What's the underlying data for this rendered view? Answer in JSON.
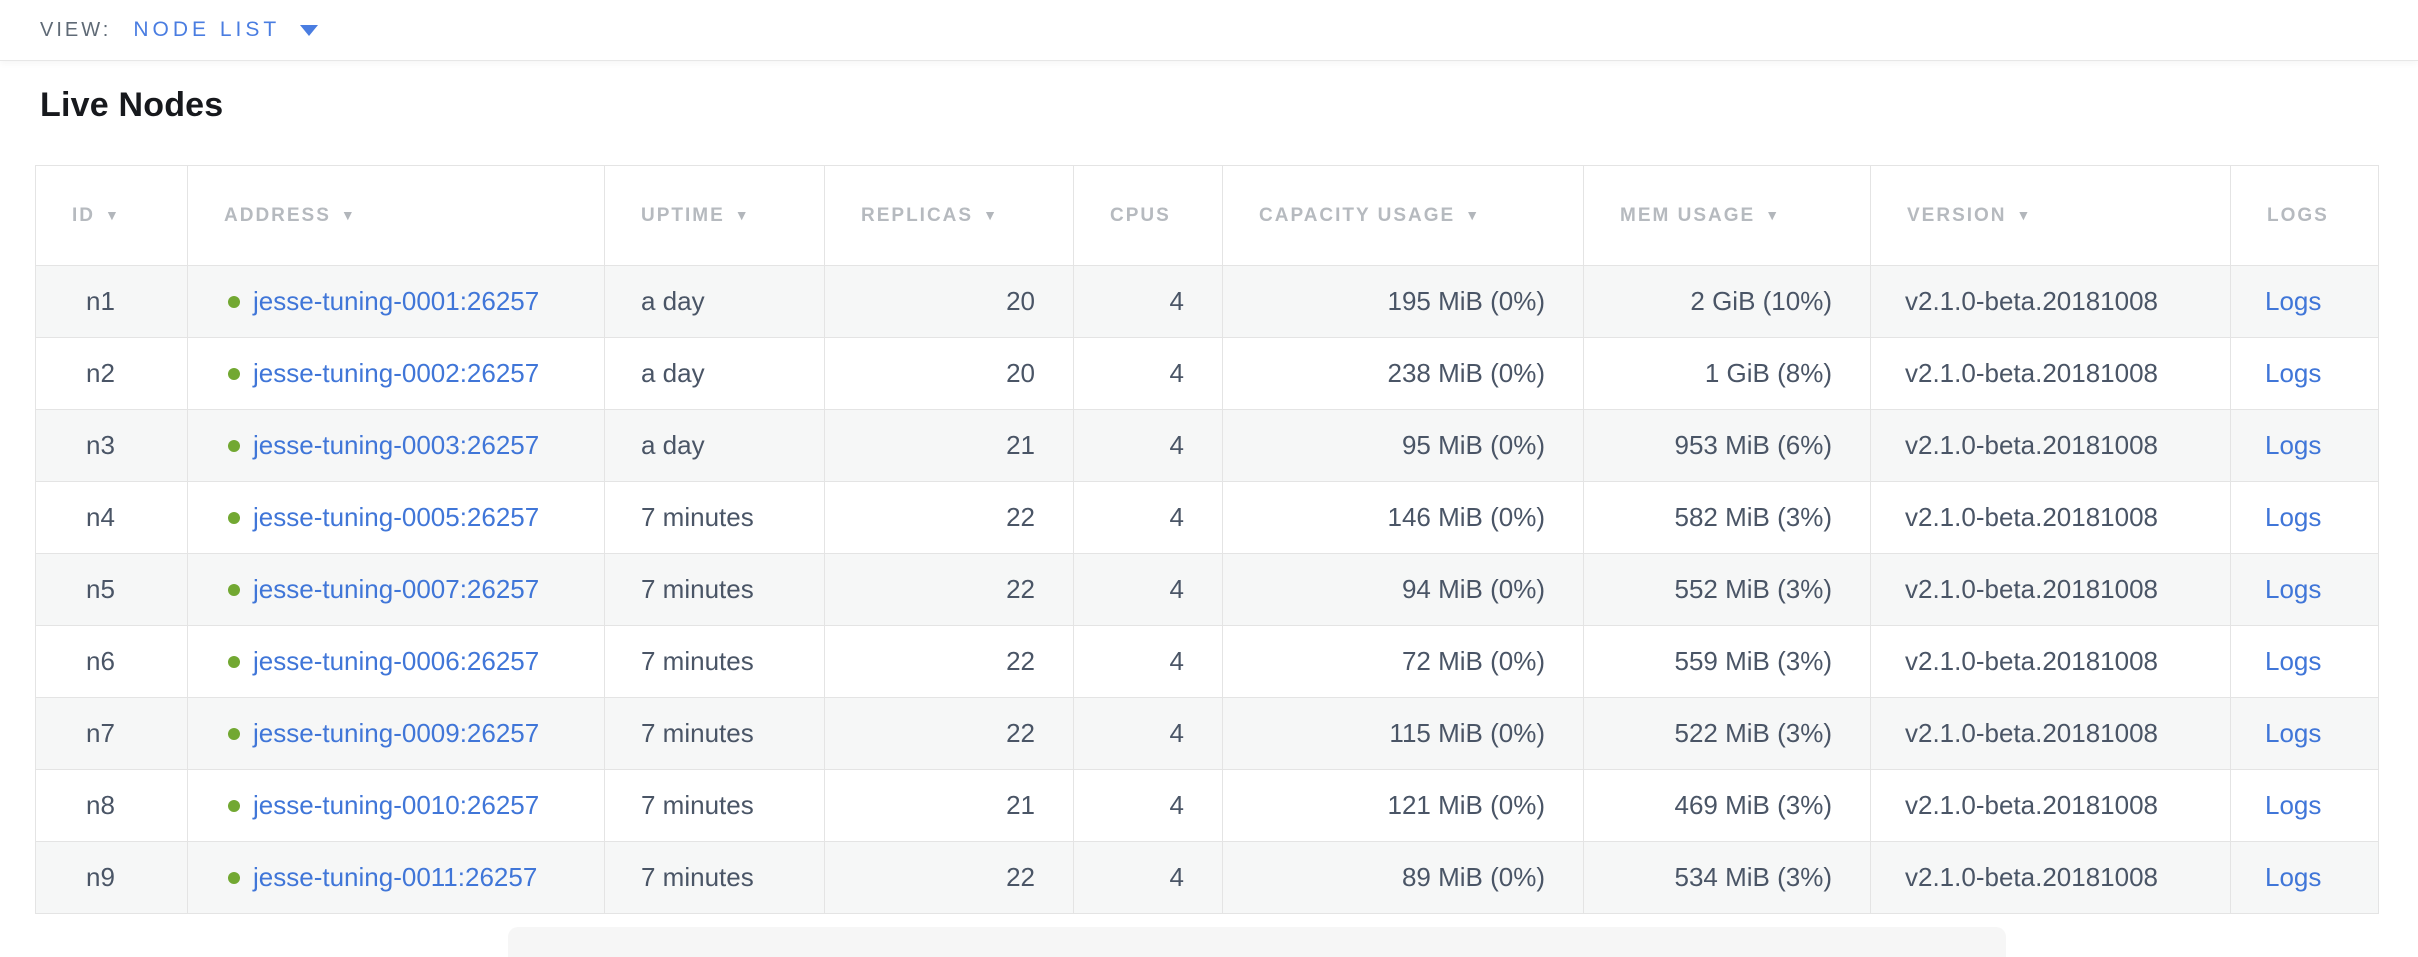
{
  "topbar": {
    "view_label": "VIEW:",
    "view_value": "NODE LIST"
  },
  "page_title": "Live Nodes",
  "colors": {
    "accent_blue": "#4a7de1",
    "link_blue": "#4076d8",
    "live_green": "#72a832",
    "header_gray": "#b6babf",
    "body_text": "#4a5566"
  },
  "icons": {
    "sort_desc": "▼",
    "dropdown_caret": "▼",
    "live_status": "●"
  },
  "table": {
    "columns": [
      {
        "label": "ID",
        "sortable": true
      },
      {
        "label": "ADDRESS",
        "sortable": true
      },
      {
        "label": "UPTIME",
        "sortable": true
      },
      {
        "label": "REPLICAS",
        "sortable": true
      },
      {
        "label": "CPUS",
        "sortable": false
      },
      {
        "label": "CAPACITY USAGE",
        "sortable": true
      },
      {
        "label": "MEM USAGE",
        "sortable": true
      },
      {
        "label": "VERSION",
        "sortable": true
      },
      {
        "label": "LOGS",
        "sortable": false
      }
    ],
    "rows": [
      {
        "id": "n1",
        "address": "jesse-tuning-0001:26257",
        "uptime": "a day",
        "replicas": "20",
        "cpus": "4",
        "capacity": "195 MiB (0%)",
        "mem": "2 GiB (10%)",
        "version": "v2.1.0-beta.20181008",
        "logs": "Logs"
      },
      {
        "id": "n2",
        "address": "jesse-tuning-0002:26257",
        "uptime": "a day",
        "replicas": "20",
        "cpus": "4",
        "capacity": "238 MiB (0%)",
        "mem": "1 GiB (8%)",
        "version": "v2.1.0-beta.20181008",
        "logs": "Logs"
      },
      {
        "id": "n3",
        "address": "jesse-tuning-0003:26257",
        "uptime": "a day",
        "replicas": "21",
        "cpus": "4",
        "capacity": "95 MiB (0%)",
        "mem": "953 MiB (6%)",
        "version": "v2.1.0-beta.20181008",
        "logs": "Logs"
      },
      {
        "id": "n4",
        "address": "jesse-tuning-0005:26257",
        "uptime": "7 minutes",
        "replicas": "22",
        "cpus": "4",
        "capacity": "146 MiB (0%)",
        "mem": "582 MiB (3%)",
        "version": "v2.1.0-beta.20181008",
        "logs": "Logs"
      },
      {
        "id": "n5",
        "address": "jesse-tuning-0007:26257",
        "uptime": "7 minutes",
        "replicas": "22",
        "cpus": "4",
        "capacity": "94 MiB (0%)",
        "mem": "552 MiB (3%)",
        "version": "v2.1.0-beta.20181008",
        "logs": "Logs"
      },
      {
        "id": "n6",
        "address": "jesse-tuning-0006:26257",
        "uptime": "7 minutes",
        "replicas": "22",
        "cpus": "4",
        "capacity": "72 MiB (0%)",
        "mem": "559 MiB (3%)",
        "version": "v2.1.0-beta.20181008",
        "logs": "Logs"
      },
      {
        "id": "n7",
        "address": "jesse-tuning-0009:26257",
        "uptime": "7 minutes",
        "replicas": "22",
        "cpus": "4",
        "capacity": "115 MiB (0%)",
        "mem": "522 MiB (3%)",
        "version": "v2.1.0-beta.20181008",
        "logs": "Logs"
      },
      {
        "id": "n8",
        "address": "jesse-tuning-0010:26257",
        "uptime": "7 minutes",
        "replicas": "21",
        "cpus": "4",
        "capacity": "121 MiB (0%)",
        "mem": "469 MiB (3%)",
        "version": "v2.1.0-beta.20181008",
        "logs": "Logs"
      },
      {
        "id": "n9",
        "address": "jesse-tuning-0011:26257",
        "uptime": "7 minutes",
        "replicas": "22",
        "cpus": "4",
        "capacity": "89 MiB (0%)",
        "mem": "534 MiB (3%)",
        "version": "v2.1.0-beta.20181008",
        "logs": "Logs"
      }
    ]
  }
}
